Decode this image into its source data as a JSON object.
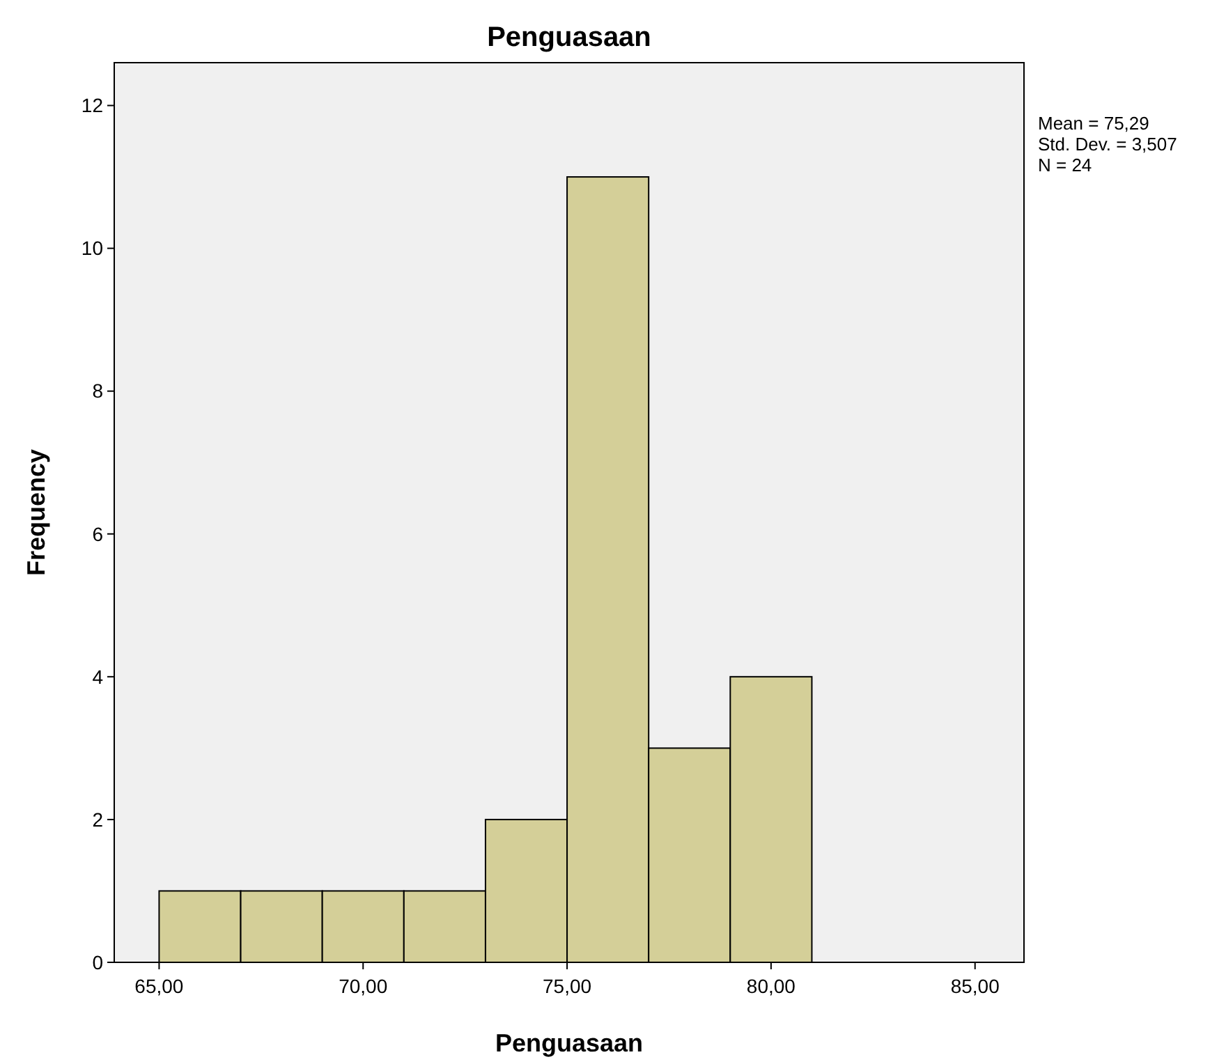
{
  "chart_data": {
    "type": "histogram",
    "title": "Penguasaan",
    "xlabel": "Penguasaan",
    "ylabel": "Frequency",
    "bins": [
      65,
      67,
      69,
      71,
      73,
      75,
      77,
      79,
      81
    ],
    "values": [
      1,
      1,
      1,
      1,
      2,
      11,
      3,
      4
    ],
    "color": "#d4cf98",
    "xlim": [
      63.9,
      86.2
    ],
    "xticks": [
      {
        "value": 65,
        "label": "65,00"
      },
      {
        "value": 70,
        "label": "70,00"
      },
      {
        "value": 75,
        "label": "75,00"
      },
      {
        "value": 80,
        "label": "80,00"
      },
      {
        "value": 85,
        "label": "85,00"
      }
    ],
    "ylim": [
      0,
      12.6
    ],
    "yticks": [
      0,
      2,
      4,
      6,
      8,
      10,
      12
    ],
    "annotations": [
      "Mean = 75,29",
      "Std. Dev. = 3,507",
      "N = 24"
    ],
    "grid": false
  }
}
